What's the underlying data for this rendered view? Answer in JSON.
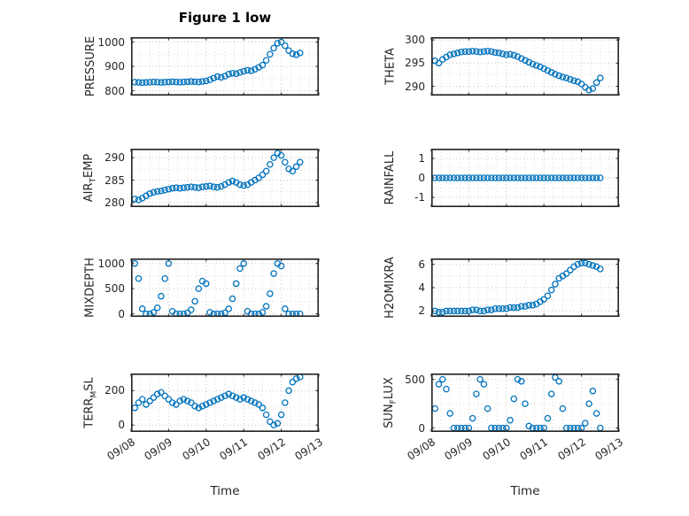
{
  "figure": {
    "title": "Figure 1 low",
    "xlabel": "Time",
    "x_tick_labels": [
      "09/08",
      "09/09",
      "09/10",
      "09/11",
      "09/12",
      "09/13"
    ],
    "marker_color": "#0072BD",
    "x_days": [
      0.1,
      0.2,
      0.3,
      0.4,
      0.5,
      0.6,
      0.7,
      0.8,
      0.9,
      1.0,
      1.1,
      1.2,
      1.3,
      1.4,
      1.5,
      1.6,
      1.7,
      1.8,
      1.9,
      2.0,
      2.1,
      2.2,
      2.3,
      2.4,
      2.5,
      2.6,
      2.7,
      2.8,
      2.9,
      3.0,
      3.1,
      3.2,
      3.3,
      3.4,
      3.5,
      3.6,
      3.7,
      3.8,
      3.9,
      4.0,
      4.1,
      4.2,
      4.3,
      4.4,
      4.5
    ]
  },
  "chart_data": [
    {
      "type": "scatter",
      "name": "pressure",
      "row": 0,
      "col": 0,
      "ylabel": {
        "pre": "PRESSURE",
        "sub": "",
        "post": ""
      },
      "yticks": [
        800,
        900,
        1000
      ],
      "ytick_labels": [
        "800",
        "900",
        "1000"
      ],
      "ylim": [
        780,
        1020
      ],
      "xlim": [
        0,
        5
      ],
      "y": [
        835,
        834,
        833,
        834,
        835,
        836,
        835,
        834,
        835,
        836,
        837,
        836,
        835,
        836,
        837,
        838,
        837,
        836,
        838,
        840,
        845,
        852,
        858,
        855,
        860,
        868,
        872,
        870,
        875,
        880,
        884,
        882,
        888,
        896,
        905,
        925,
        950,
        975,
        995,
        1000,
        985,
        965,
        952,
        948,
        955
      ]
    },
    {
      "type": "scatter",
      "name": "theta",
      "row": 0,
      "col": 1,
      "ylabel": {
        "pre": "THETA",
        "sub": "",
        "post": ""
      },
      "yticks": [
        290,
        295,
        300
      ],
      "ytick_labels": [
        "290",
        "295",
        "300"
      ],
      "ylim": [
        288,
        300.6
      ],
      "xlim": [
        0,
        5
      ],
      "y": [
        295.5,
        295.0,
        295.8,
        296.3,
        296.8,
        297.0,
        297.2,
        297.4,
        297.5,
        297.5,
        297.6,
        297.5,
        297.4,
        297.5,
        297.6,
        297.5,
        297.3,
        297.2,
        297.0,
        296.8,
        296.9,
        296.7,
        296.4,
        296.0,
        295.6,
        295.2,
        294.8,
        294.5,
        294.2,
        293.8,
        293.4,
        293.0,
        292.6,
        292.3,
        292.0,
        291.8,
        291.5,
        291.2,
        291.0,
        290.5,
        289.8,
        289.2,
        289.5,
        290.8,
        291.8
      ]
    },
    {
      "type": "scatter",
      "name": "airtemp",
      "row": 1,
      "col": 0,
      "ylabel": {
        "pre": "AIR",
        "sub": "T",
        "post": "EMP"
      },
      "yticks": [
        280,
        285,
        290
      ],
      "ytick_labels": [
        "280",
        "285",
        "290"
      ],
      "ylim": [
        279,
        292
      ],
      "xlim": [
        0,
        5
      ],
      "y": [
        280.8,
        280.6,
        281.0,
        281.5,
        282.0,
        282.3,
        282.5,
        282.6,
        282.8,
        283.0,
        283.2,
        283.3,
        283.2,
        283.3,
        283.4,
        283.5,
        283.4,
        283.3,
        283.5,
        283.6,
        283.7,
        283.5,
        283.4,
        283.6,
        284.0,
        284.5,
        284.8,
        284.5,
        284.0,
        283.8,
        284.0,
        284.5,
        285.0,
        285.5,
        286.2,
        287.0,
        288.5,
        290.0,
        291.0,
        290.5,
        289.0,
        287.5,
        287.0,
        288.0,
        289.0
      ]
    },
    {
      "type": "scatter",
      "name": "rainfall",
      "row": 1,
      "col": 1,
      "ylabel": {
        "pre": "RAINFALL",
        "sub": "",
        "post": ""
      },
      "yticks": [
        -1,
        0,
        1
      ],
      "ytick_labels": [
        "-1",
        "0",
        "1"
      ],
      "ylim": [
        -1.5,
        1.5
      ],
      "xlim": [
        0,
        5
      ],
      "y": [
        0,
        0,
        0,
        0,
        0,
        0,
        0,
        0,
        0,
        0,
        0,
        0,
        0,
        0,
        0,
        0,
        0,
        0,
        0,
        0,
        0,
        0,
        0,
        0,
        0,
        0,
        0,
        0,
        0,
        0,
        0,
        0,
        0,
        0,
        0,
        0,
        0,
        0,
        0,
        0,
        0,
        0,
        0,
        0,
        0
      ]
    },
    {
      "type": "scatter",
      "name": "mixdepth",
      "row": 2,
      "col": 0,
      "ylabel": {
        "pre": "MIXDEPTH",
        "sub": "",
        "post": ""
      },
      "yticks": [
        0,
        500,
        1000
      ],
      "ytick_labels": [
        "0",
        "500",
        "1000"
      ],
      "ylim": [
        -60,
        1100
      ],
      "xlim": [
        0,
        5
      ],
      "y": [
        1000,
        700,
        100,
        0,
        0,
        30,
        120,
        350,
        700,
        1000,
        50,
        0,
        0,
        0,
        20,
        80,
        250,
        500,
        650,
        600,
        30,
        0,
        0,
        0,
        20,
        100,
        300,
        600,
        900,
        1000,
        50,
        0,
        0,
        0,
        30,
        150,
        400,
        800,
        1000,
        950,
        100,
        0,
        0,
        0,
        0
      ]
    },
    {
      "type": "scatter",
      "name": "h2omixra",
      "row": 2,
      "col": 1,
      "ylabel": {
        "pre": "H2OMIXRA",
        "sub": "",
        "post": ""
      },
      "yticks": [
        2,
        4,
        6
      ],
      "ytick_labels": [
        "2",
        "4",
        "6"
      ],
      "ylim": [
        1.5,
        6.5
      ],
      "xlim": [
        0,
        5
      ],
      "y": [
        2.0,
        1.9,
        1.9,
        2.0,
        2.0,
        2.0,
        2.0,
        2.0,
        2.0,
        2.0,
        2.1,
        2.1,
        2.0,
        2.0,
        2.1,
        2.1,
        2.2,
        2.2,
        2.2,
        2.2,
        2.3,
        2.3,
        2.3,
        2.4,
        2.4,
        2.5,
        2.5,
        2.6,
        2.8,
        3.0,
        3.3,
        3.8,
        4.3,
        4.8,
        5.0,
        5.2,
        5.5,
        5.8,
        6.0,
        6.1,
        6.1,
        6.0,
        5.9,
        5.8,
        5.6
      ]
    },
    {
      "type": "scatter",
      "name": "terrmsl",
      "row": 3,
      "col": 0,
      "ylabel": {
        "pre": "TERR",
        "sub": "M",
        "post": "SL"
      },
      "yticks": [
        0,
        200
      ],
      "ytick_labels": [
        "0",
        "200"
      ],
      "ylim": [
        -40,
        300
      ],
      "xlim": [
        0,
        5
      ],
      "y": [
        100,
        130,
        150,
        120,
        140,
        160,
        180,
        190,
        170,
        150,
        130,
        120,
        140,
        150,
        140,
        130,
        110,
        100,
        110,
        120,
        130,
        140,
        150,
        160,
        170,
        180,
        170,
        160,
        150,
        160,
        150,
        140,
        130,
        120,
        100,
        60,
        20,
        0,
        10,
        60,
        130,
        200,
        250,
        270,
        280
      ]
    },
    {
      "type": "scatter",
      "name": "sunflux",
      "row": 3,
      "col": 1,
      "ylabel": {
        "pre": "SUN",
        "sub": "F",
        "post": "LUX"
      },
      "yticks": [
        0,
        500
      ],
      "ytick_labels": [
        "0",
        "500"
      ],
      "ylim": [
        -40,
        560
      ],
      "xlim": [
        0,
        5
      ],
      "y": [
        200,
        450,
        500,
        400,
        150,
        0,
        0,
        0,
        0,
        0,
        100,
        350,
        500,
        450,
        200,
        0,
        0,
        0,
        0,
        0,
        80,
        300,
        500,
        480,
        250,
        20,
        0,
        0,
        0,
        0,
        100,
        350,
        520,
        480,
        200,
        0,
        0,
        0,
        0,
        0,
        50,
        250,
        380,
        150,
        0
      ]
    }
  ]
}
